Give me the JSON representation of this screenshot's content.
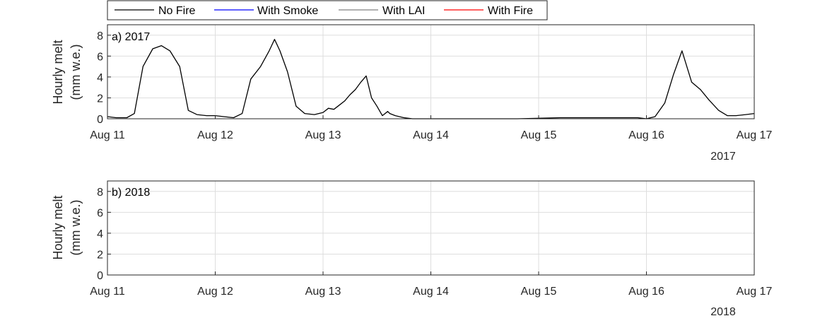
{
  "legend": [
    {
      "name": "No Fire",
      "color": "#000000"
    },
    {
      "name": "With Smoke",
      "color": "#0000ff"
    },
    {
      "name": "With LAI",
      "color": "#808080"
    },
    {
      "name": "With Fire",
      "color": "#ff0000"
    }
  ],
  "chart_data": [
    {
      "type": "line",
      "title": "a) 2017",
      "ylabel": "Hourly melt",
      "ylabel_units": "(mm w.e.)",
      "year_label": "2017",
      "x_ticks": [
        "Aug 11",
        "Aug 12",
        "Aug 13",
        "Aug 14",
        "Aug 15",
        "Aug 16",
        "Aug 17"
      ],
      "y_ticks": [
        0,
        2,
        4,
        6,
        8
      ],
      "xlim": [
        0,
        6
      ],
      "ylim": [
        0,
        9
      ],
      "grid": true,
      "series": [
        {
          "name": "No Fire",
          "color": "#000000",
          "x": [
            0,
            0.08,
            0.18,
            0.25,
            0.33,
            0.42,
            0.5,
            0.58,
            0.67,
            0.75,
            0.83,
            0.92,
            1,
            1.08,
            1.17,
            1.25,
            1.33,
            1.42,
            1.5,
            1.55,
            1.6,
            1.67,
            1.75,
            1.83,
            1.92,
            2,
            2.05,
            2.1,
            2.15,
            2.2,
            2.25,
            2.3,
            2.35,
            2.4,
            2.45,
            2.5,
            2.55,
            2.6,
            2.62,
            2.67,
            2.75,
            2.83,
            2.92,
            3,
            3.06,
            3.2,
            3.25,
            3.35,
            3.4,
            3.45,
            3.5,
            3.55,
            3.6,
            3.65,
            3.7,
            3.75,
            3.8,
            4.2,
            4.25,
            4.3,
            4.35,
            4.4,
            4.45,
            4.5,
            4.55,
            4.6,
            4.67,
            4.75,
            4.83,
            4.92,
            5,
            5.08,
            5.17,
            5.25,
            5.33,
            5.42,
            5.5,
            5.58,
            5.67,
            5.75,
            5.83,
            5.92,
            6
          ],
          "y": [
            0.2,
            0.1,
            0.1,
            0.5,
            5,
            6.7,
            7,
            6.5,
            5,
            0.8,
            0.4,
            0.3,
            0.3,
            0.2,
            0.1,
            0.5,
            3.8,
            5,
            6.5,
            7.6,
            6.5,
            4.5,
            1.2,
            0.5,
            0.4,
            0.6,
            1.0,
            0.9,
            1.3,
            1.7,
            2.3,
            2.8,
            3.5,
            4.1,
            2,
            1.2,
            0.3,
            0.7,
            0.5,
            0.3,
            0.1,
            0,
            0,
            0,
            0,
            0,
            0,
            0,
            0,
            0,
            0,
            0,
            0,
            0,
            0,
            0,
            0,
            0.1,
            0.1,
            0.1,
            0.1,
            0.1,
            0.1,
            0.1,
            0.1,
            0.1,
            0.1,
            0.1,
            0.1,
            0.1,
            0,
            0.2,
            1.5,
            4.2,
            6.5,
            3.5,
            2.8,
            1.8,
            0.8,
            0.3,
            0.3,
            0.4,
            0.5
          ]
        }
      ]
    },
    {
      "type": "line",
      "title": "b) 2018",
      "ylabel": "Hourly melt",
      "ylabel_units": "(mm w.e.)",
      "year_label": "2018",
      "x_ticks": [
        "Aug 11",
        "Aug 12",
        "Aug 13",
        "Aug 14",
        "Aug 15",
        "Aug 16",
        "Aug 17"
      ],
      "y_ticks": [
        0,
        2,
        4,
        6,
        8
      ],
      "xlim": [
        0,
        6
      ],
      "ylim": [
        0,
        9
      ],
      "grid": true
    }
  ]
}
